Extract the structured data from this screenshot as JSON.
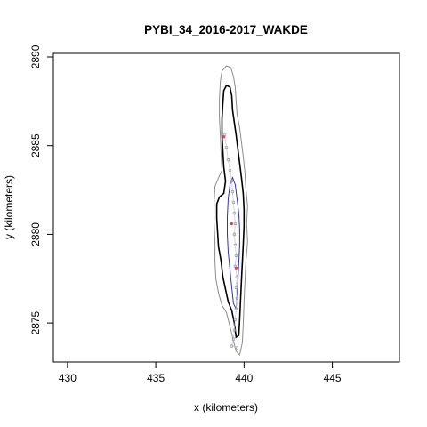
{
  "chart_data": {
    "type": "line",
    "title": "PYBI_34_2016-2017_WAKDE",
    "xlabel": "x (kilometers)",
    "ylabel": "y (kilometers)",
    "xlim": [
      429.2,
      448.8
    ],
    "ylim": [
      2872.8,
      2890.2
    ],
    "xticks": [
      430,
      435,
      440,
      445
    ],
    "yticks": [
      2875,
      2880,
      2885,
      2890
    ],
    "grid": false,
    "contours": [
      {
        "level": "outer",
        "color": "#8c8c8c",
        "points": [
          [
            439.0,
            2889.5
          ],
          [
            439.25,
            2889.4
          ],
          [
            439.4,
            2888.9
          ],
          [
            439.5,
            2888.3
          ],
          [
            439.55,
            2887.5
          ],
          [
            439.6,
            2886.8
          ],
          [
            439.75,
            2886.0
          ],
          [
            439.85,
            2885.2
          ],
          [
            439.95,
            2884.4
          ],
          [
            440.05,
            2883.5
          ],
          [
            440.1,
            2882.6
          ],
          [
            440.2,
            2881.6
          ],
          [
            440.15,
            2880.6
          ],
          [
            440.2,
            2879.6
          ],
          [
            440.1,
            2878.4
          ],
          [
            440.05,
            2877.3
          ],
          [
            440.0,
            2876.2
          ],
          [
            439.95,
            2874.9
          ],
          [
            439.9,
            2873.9
          ],
          [
            439.75,
            2873.2
          ],
          [
            439.55,
            2873.4
          ],
          [
            439.4,
            2874.0
          ],
          [
            439.2,
            2874.8
          ],
          [
            439.0,
            2875.6
          ],
          [
            438.75,
            2876.0
          ],
          [
            438.55,
            2876.7
          ],
          [
            438.4,
            2877.5
          ],
          [
            438.35,
            2878.5
          ],
          [
            438.35,
            2879.6
          ],
          [
            438.3,
            2880.7
          ],
          [
            438.3,
            2881.7
          ],
          [
            438.35,
            2882.7
          ],
          [
            438.6,
            2883.3
          ],
          [
            438.75,
            2883.6
          ],
          [
            438.7,
            2884.6
          ],
          [
            438.65,
            2885.6
          ],
          [
            438.6,
            2886.6
          ],
          [
            438.6,
            2887.6
          ],
          [
            438.65,
            2888.6
          ],
          [
            438.75,
            2889.2
          ],
          [
            439.0,
            2889.5
          ]
        ]
      },
      {
        "level": "middle",
        "color": "#000000",
        "points": [
          [
            439.0,
            2888.4
          ],
          [
            439.2,
            2888.3
          ],
          [
            439.3,
            2887.8
          ],
          [
            439.35,
            2887.0
          ],
          [
            439.45,
            2886.3
          ],
          [
            439.55,
            2885.6
          ],
          [
            439.65,
            2884.8
          ],
          [
            439.75,
            2884.0
          ],
          [
            439.85,
            2883.2
          ],
          [
            439.95,
            2882.3
          ],
          [
            440.0,
            2881.4
          ],
          [
            440.0,
            2880.4
          ],
          [
            439.95,
            2879.4
          ],
          [
            439.9,
            2878.4
          ],
          [
            439.85,
            2877.4
          ],
          [
            439.8,
            2876.3
          ],
          [
            439.75,
            2875.2
          ],
          [
            439.7,
            2874.3
          ],
          [
            439.55,
            2874.2
          ],
          [
            439.45,
            2875.0
          ],
          [
            439.3,
            2875.7
          ],
          [
            439.1,
            2876.2
          ],
          [
            438.95,
            2876.9
          ],
          [
            438.8,
            2877.6
          ],
          [
            438.7,
            2878.5
          ],
          [
            438.55,
            2879.3
          ],
          [
            438.5,
            2880.1
          ],
          [
            438.45,
            2880.9
          ],
          [
            438.45,
            2881.7
          ],
          [
            438.6,
            2882.1
          ],
          [
            438.85,
            2882.3
          ],
          [
            438.95,
            2883.0
          ],
          [
            438.85,
            2883.8
          ],
          [
            438.8,
            2884.7
          ],
          [
            438.75,
            2885.6
          ],
          [
            438.75,
            2886.5
          ],
          [
            438.8,
            2887.4
          ],
          [
            438.85,
            2888.1
          ],
          [
            439.0,
            2888.4
          ]
        ]
      },
      {
        "level": "inner",
        "color": "#3333aa",
        "points": [
          [
            439.35,
            2883.2
          ],
          [
            439.5,
            2882.8
          ],
          [
            439.6,
            2882.0
          ],
          [
            439.7,
            2881.2
          ],
          [
            439.75,
            2880.3
          ],
          [
            439.75,
            2879.4
          ],
          [
            439.7,
            2878.4
          ],
          [
            439.65,
            2877.4
          ],
          [
            439.6,
            2876.5
          ],
          [
            439.55,
            2875.8
          ],
          [
            439.4,
            2876.1
          ],
          [
            439.3,
            2877.0
          ],
          [
            439.2,
            2878.0
          ],
          [
            439.1,
            2879.0
          ],
          [
            439.05,
            2880.0
          ],
          [
            439.05,
            2881.0
          ],
          [
            439.1,
            2882.0
          ],
          [
            439.2,
            2882.8
          ],
          [
            439.35,
            2883.2
          ]
        ]
      }
    ],
    "points": [
      [
        438.9,
        2885.6
      ],
      [
        439.0,
        2884.9
      ],
      [
        439.1,
        2884.2
      ],
      [
        439.2,
        2883.6
      ],
      [
        439.3,
        2883.0
      ],
      [
        439.35,
        2882.4
      ],
      [
        439.4,
        2881.8
      ],
      [
        439.45,
        2881.2
      ],
      [
        439.5,
        2880.6
      ],
      [
        439.45,
        2880.0
      ],
      [
        439.5,
        2879.4
      ],
      [
        439.55,
        2878.8
      ],
      [
        439.5,
        2878.2
      ],
      [
        439.6,
        2877.6
      ],
      [
        439.55,
        2877.0
      ],
      [
        439.6,
        2876.4
      ],
      [
        439.55,
        2875.8
      ],
      [
        439.5,
        2875.2
      ],
      [
        439.45,
        2874.6
      ],
      [
        439.4,
        2874.1
      ],
      [
        439.3,
        2873.7
      ],
      [
        439.6,
        2873.6
      ]
    ],
    "marked_points": [
      [
        438.85,
        2885.5
      ],
      [
        439.3,
        2880.6
      ],
      [
        439.55,
        2878.1
      ]
    ]
  }
}
